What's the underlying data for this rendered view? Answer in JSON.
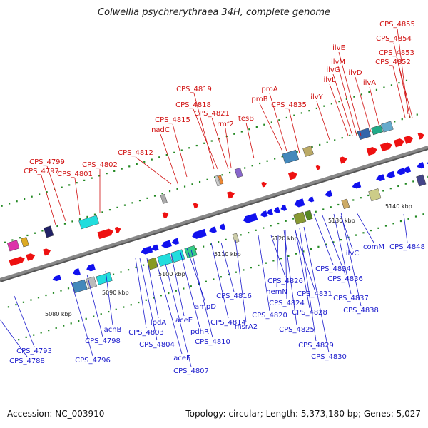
{
  "title": "Colwellia psychrerythraea 34H, complete genome",
  "footer": {
    "accession": "Accession: NC_003910",
    "stats": "Topology: circular; Length: 5,373,180 bp; Genes: 5,027"
  },
  "colors": {
    "forward_gene": "#ee1111",
    "reverse_gene": "#1111ee",
    "forward_label": "#d01010",
    "reverse_label": "#1a1acc",
    "backbone": "#888888",
    "tick": "#228822"
  },
  "ticks": [
    "5080 kbp",
    "5090 kbp",
    "5100 kbp",
    "5110 kbp",
    "5120 kbp",
    "5130 kbp",
    "5140 kbp"
  ],
  "top_labels": [
    "CPS_4855",
    "CPS_4854",
    "CPS_4853",
    "CPS_4852",
    "ilvE",
    "ilvM",
    "ilvG",
    "ilvL",
    "ilvD",
    "ilvA",
    "CPS_4819",
    "proA",
    "CPS_4818",
    "proB",
    "CPS_4835",
    "CPS_4821",
    "rmf2",
    "ilvY",
    "CPS_4815",
    "tesB",
    "nadC",
    "CPS_4812",
    "CPS_4799",
    "CPS_4797",
    "CPS_4802",
    "CPS_4801"
  ],
  "bottom_labels": [
    "CPS_4848",
    "comM",
    "ilvC",
    "CPS_4834",
    "CPS_4836",
    "CPS_4837",
    "CPS_4838",
    "CPS_4826",
    "hemN",
    "CPS_4824",
    "CPS_4831",
    "CPS_4828",
    "CPS_4825",
    "CPS_4829",
    "CPS_4830",
    "CPS_4820",
    "msrA2",
    "CPS_4816",
    "CPS_4814",
    "ampD",
    "pdhR",
    "CPS_4810",
    "aceE",
    "aceF",
    "CPS_4807",
    "lpdA",
    "CPS_4803",
    "CPS_4804",
    "acnB",
    "CPS_4798",
    "CPS_4793",
    "CPS_4796",
    "CPS_4788"
  ]
}
